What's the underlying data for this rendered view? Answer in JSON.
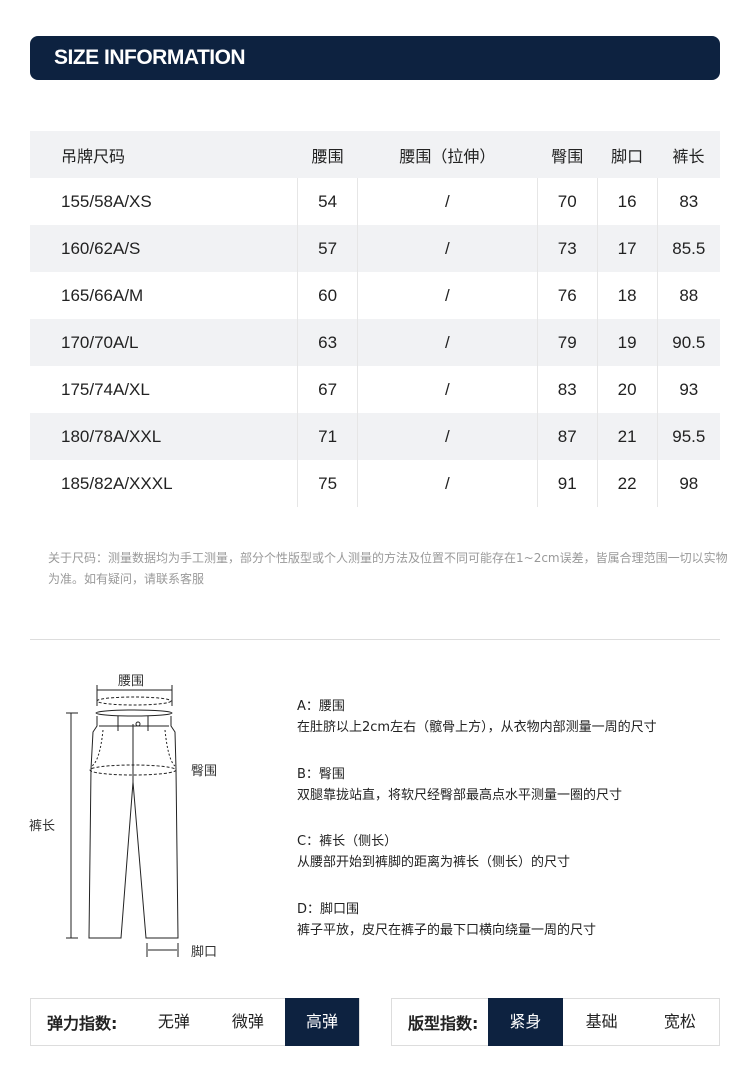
{
  "banner": "SIZE INFORMATION",
  "table": {
    "headers": [
      "吊牌尺码",
      "腰围",
      "腰围（拉伸）",
      "臀围",
      "脚口",
      "裤长"
    ],
    "rows": [
      [
        "155/58A/XS",
        "54",
        "/",
        "70",
        "16",
        "83"
      ],
      [
        "160/62A/S",
        "57",
        "/",
        "73",
        "17",
        "85.5"
      ],
      [
        "165/66A/M",
        "60",
        "/",
        "76",
        "18",
        "88"
      ],
      [
        "170/70A/L",
        "63",
        "/",
        "79",
        "19",
        "90.5"
      ],
      [
        "175/74A/XL",
        "67",
        "/",
        "83",
        "20",
        "93"
      ],
      [
        "180/78A/XXL",
        "71",
        "/",
        "87",
        "21",
        "95.5"
      ],
      [
        "185/82A/XXXL",
        "75",
        "/",
        "91",
        "22",
        "98"
      ]
    ]
  },
  "note": "关于尺码：测量数据均为手工测量，部分个性版型或个人测量的方法及位置不同可能存在1~2cm误差，皆属合理范围一切以实物为准。如有疑问，请联系客服",
  "diagram": {
    "waist": "腰围",
    "hip": "臀围",
    "length": "裤长",
    "hem": "脚口"
  },
  "measures": [
    {
      "title": "A：腰围",
      "text": "在肚脐以上2cm左右（髋骨上方），从衣物内部测量一周的尺寸"
    },
    {
      "title": "B：臀围",
      "text": "双腿靠拢站直，将软尺经臀部最高点水平测量一圈的尺寸"
    },
    {
      "title": "C：裤长（侧长）",
      "text": "从腰部开始到裤脚的距离为裤长（侧长）的尺寸"
    },
    {
      "title": "D：脚口围",
      "text": "裤子平放，皮尺在裤子的最下口横向绕量一周的尺寸"
    }
  ],
  "elasticity": {
    "label": "弹力指数:",
    "options": [
      "无弹",
      "微弹",
      "高弹"
    ],
    "selected": "高弹"
  },
  "fit": {
    "label": "版型指数:",
    "options": [
      "紧身",
      "基础",
      "宽松"
    ],
    "selected": "紧身"
  },
  "colors": {
    "accent": "#0d2240"
  }
}
